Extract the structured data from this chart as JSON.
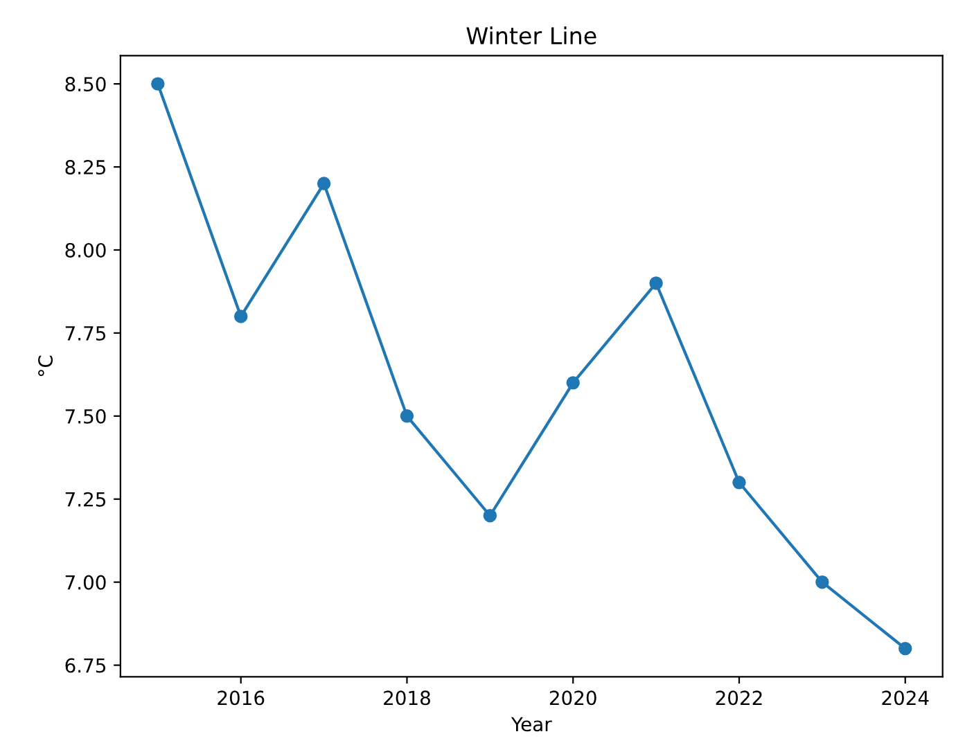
{
  "chart_data": {
    "type": "line",
    "title": "Winter Line",
    "xlabel": "Year",
    "ylabel": "°C",
    "x": [
      2015,
      2016,
      2017,
      2018,
      2019,
      2020,
      2021,
      2022,
      2023,
      2024
    ],
    "series": [
      {
        "color": "#1f77b4",
        "values": [
          8.5,
          7.8,
          8.2,
          7.5,
          7.2,
          7.6,
          7.9,
          7.3,
          7.0,
          6.8
        ]
      }
    ],
    "marker": "circle",
    "line_style": "solid",
    "xlim": [
      2014.55,
      2024.45
    ],
    "xticks": [
      2016,
      2018,
      2020,
      2022,
      2024
    ],
    "ylim": [
      6.715,
      8.585
    ],
    "yticks": [
      {
        "value": 6.75,
        "label": "6.75"
      },
      {
        "value": 7.0,
        "label": "7.00"
      },
      {
        "value": 7.25,
        "label": "7.25"
      },
      {
        "value": 7.5,
        "label": "7.50"
      },
      {
        "value": 7.75,
        "label": "7.75"
      },
      {
        "value": 8.0,
        "label": "8.00"
      },
      {
        "value": 8.25,
        "label": "8.25"
      },
      {
        "value": 8.5,
        "label": "8.50"
      }
    ],
    "grid": false
  }
}
